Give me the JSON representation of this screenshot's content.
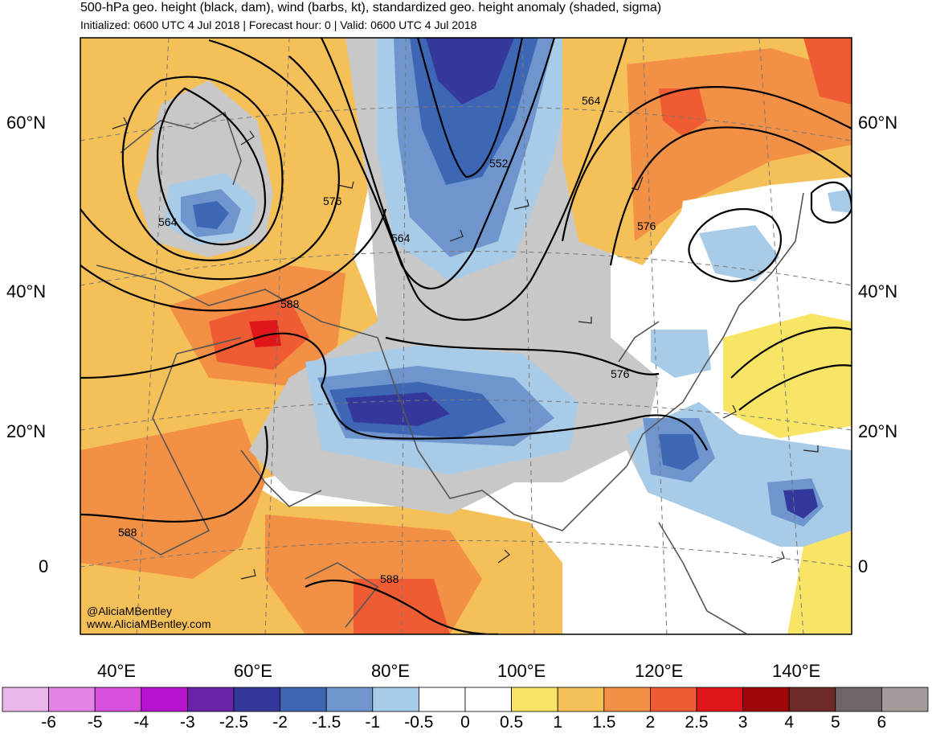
{
  "header": {
    "title": "500-hPa geo. height (black, dam), wind (barbs, kt), standardized geo. height anomaly (shaded, sigma)",
    "subtitle": "Initialized: 0600 UTC 4 Jul 2018 | Forecast hour: 0 | Valid: 0600 UTC 4 Jul 2018"
  },
  "axes": {
    "lat_labels": [
      "60°N",
      "40°N",
      "20°N",
      "0"
    ],
    "lon_labels": [
      "40°E",
      "60°E",
      "80°E",
      "100°E",
      "120°E",
      "140°E"
    ]
  },
  "contours": {
    "labels": [
      "564",
      "576",
      "564",
      "552",
      "564",
      "576",
      "588",
      "576",
      "588",
      "588"
    ]
  },
  "credit": {
    "handle": "@AliciaMBentley",
    "website": "www.AliciaMBentley.com"
  },
  "colorbar": {
    "ticks": [
      "-6",
      "-5",
      "-4",
      "-3",
      "-2.5",
      "-2",
      "-1.5",
      "-1",
      "-0.5",
      "0",
      "0.5",
      "1",
      "1.5",
      "2",
      "2.5",
      "3",
      "4",
      "5",
      "6"
    ],
    "colors": [
      "#e8b6e8",
      "#e383e6",
      "#d751dc",
      "#b513cd",
      "#6a24a6",
      "#35389b",
      "#3d66b4",
      "#6e95cd",
      "#a8cbe8",
      "#ffffff",
      "#ffffff",
      "#f8e566",
      "#f5c058",
      "#f29046",
      "#ef5c34",
      "#e1161d",
      "#a0070a",
      "#6e2a26",
      "#6e6666",
      "#a39a9a"
    ]
  },
  "map_colors": {
    "ocean": "#ffffff",
    "coast": "#555555",
    "contour": "#000000"
  }
}
